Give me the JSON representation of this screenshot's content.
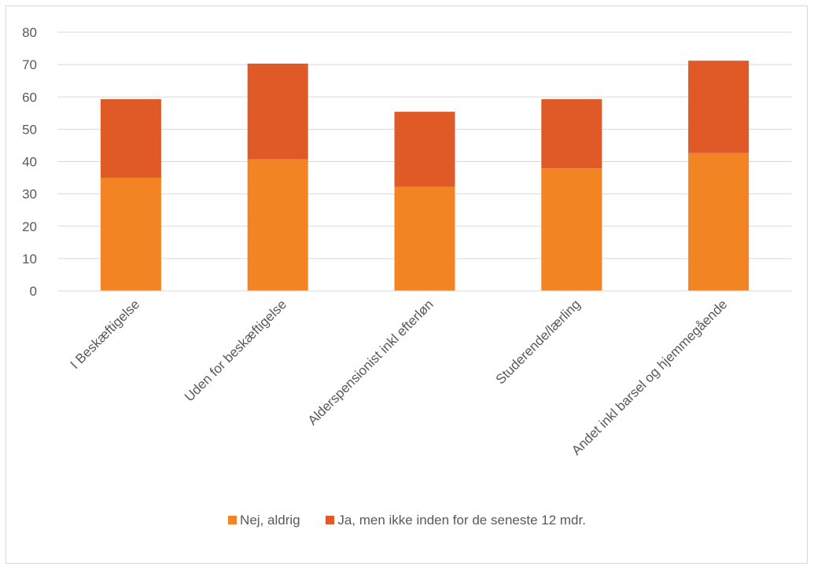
{
  "chart_data": {
    "type": "bar",
    "stacked": true,
    "title": "",
    "xlabel": "",
    "ylabel": "",
    "categories": [
      "I Beskæftigelse",
      "Uden for beskæftigelse",
      "Alderspensionist inkl efterløn",
      "Studerende/lærling",
      "Andet inkl barsel og hjemmegående"
    ],
    "series": [
      {
        "name": "Nej, aldrig",
        "color": "#f28423",
        "values": [
          35,
          40.7,
          32.2,
          37.9,
          42.6
        ]
      },
      {
        "name": "Ja, men ikke inden for de seneste 12 mdr.",
        "color": "#e05a27",
        "values": [
          24.3,
          29.6,
          23.2,
          21.4,
          28.6
        ]
      }
    ],
    "ylim": [
      0,
      80
    ],
    "yticks": [
      0,
      10,
      20,
      30,
      40,
      50,
      60,
      70,
      80
    ],
    "grid": true,
    "legend_position": "bottom"
  }
}
